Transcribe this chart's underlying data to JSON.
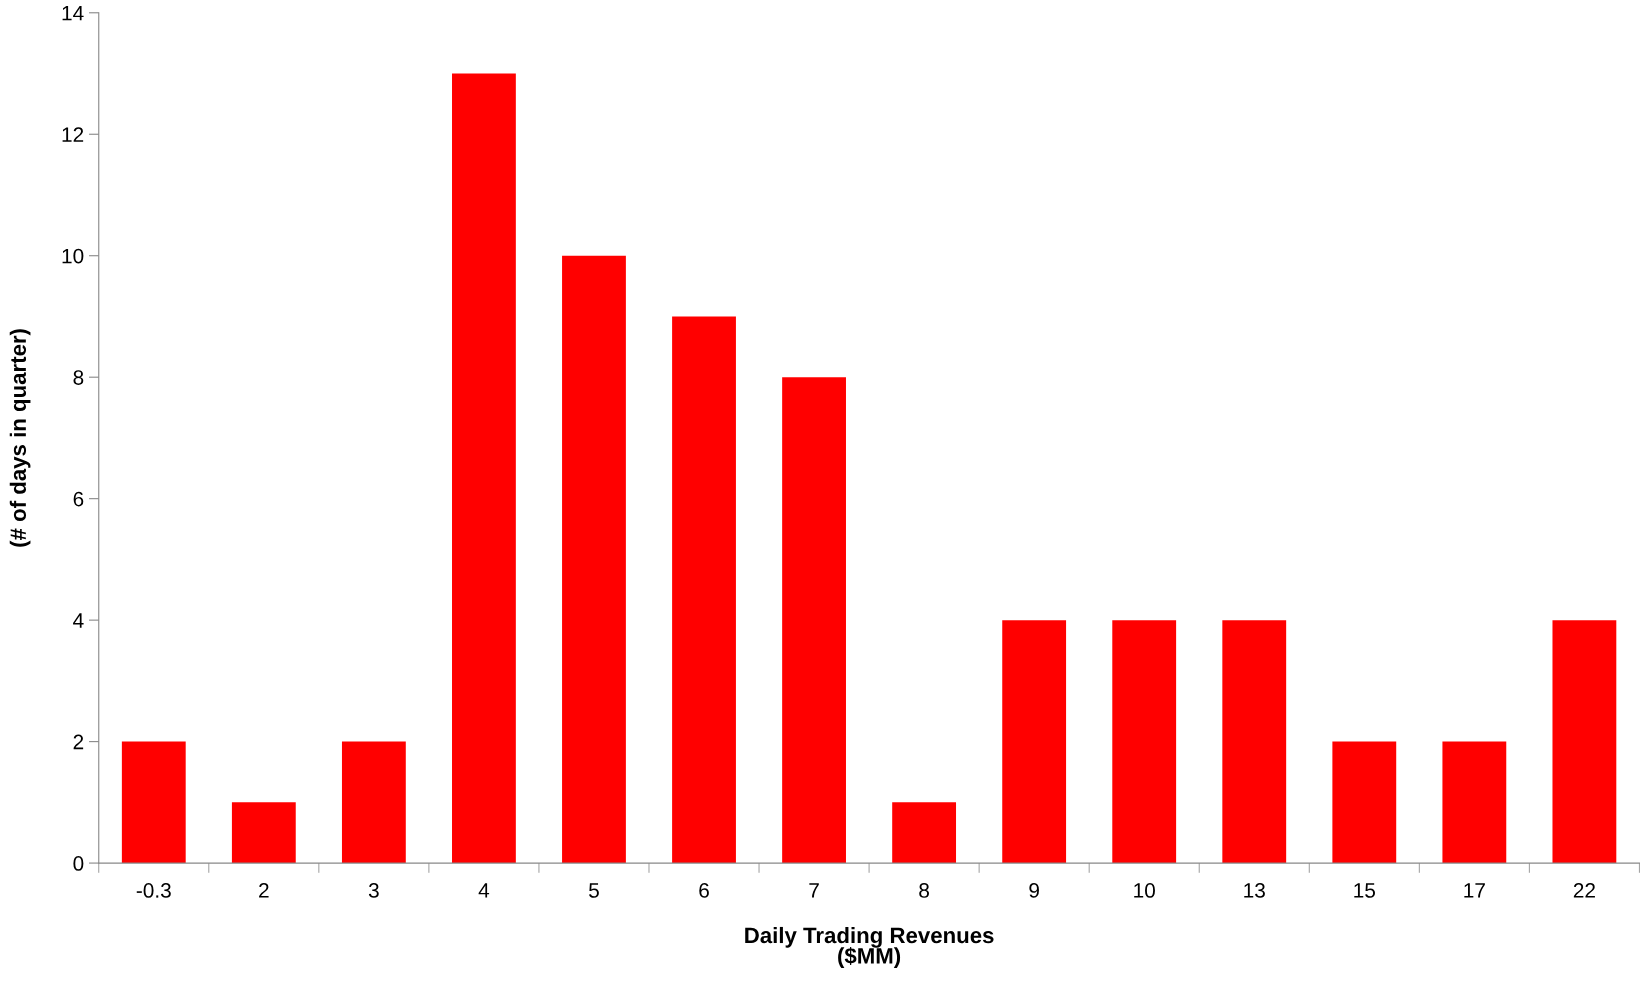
{
  "chart_data": {
    "type": "bar",
    "xlabel": "Daily Trading Revenues\n($MM)",
    "ylabel": "(# of days in quarter)",
    "categories": [
      "-0.3",
      "2",
      "3",
      "4",
      "5",
      "6",
      "7",
      "8",
      "9",
      "10",
      "13",
      "15",
      "17",
      "22"
    ],
    "values": [
      2,
      1,
      2,
      13,
      10,
      9,
      8,
      1,
      4,
      4,
      4,
      2,
      2,
      4
    ],
    "color": "#ff0000",
    "ylim": [
      0,
      14
    ],
    "yticks": [
      0,
      2,
      4,
      6,
      8,
      10,
      12,
      14
    ],
    "grid": false,
    "legend": false
  }
}
